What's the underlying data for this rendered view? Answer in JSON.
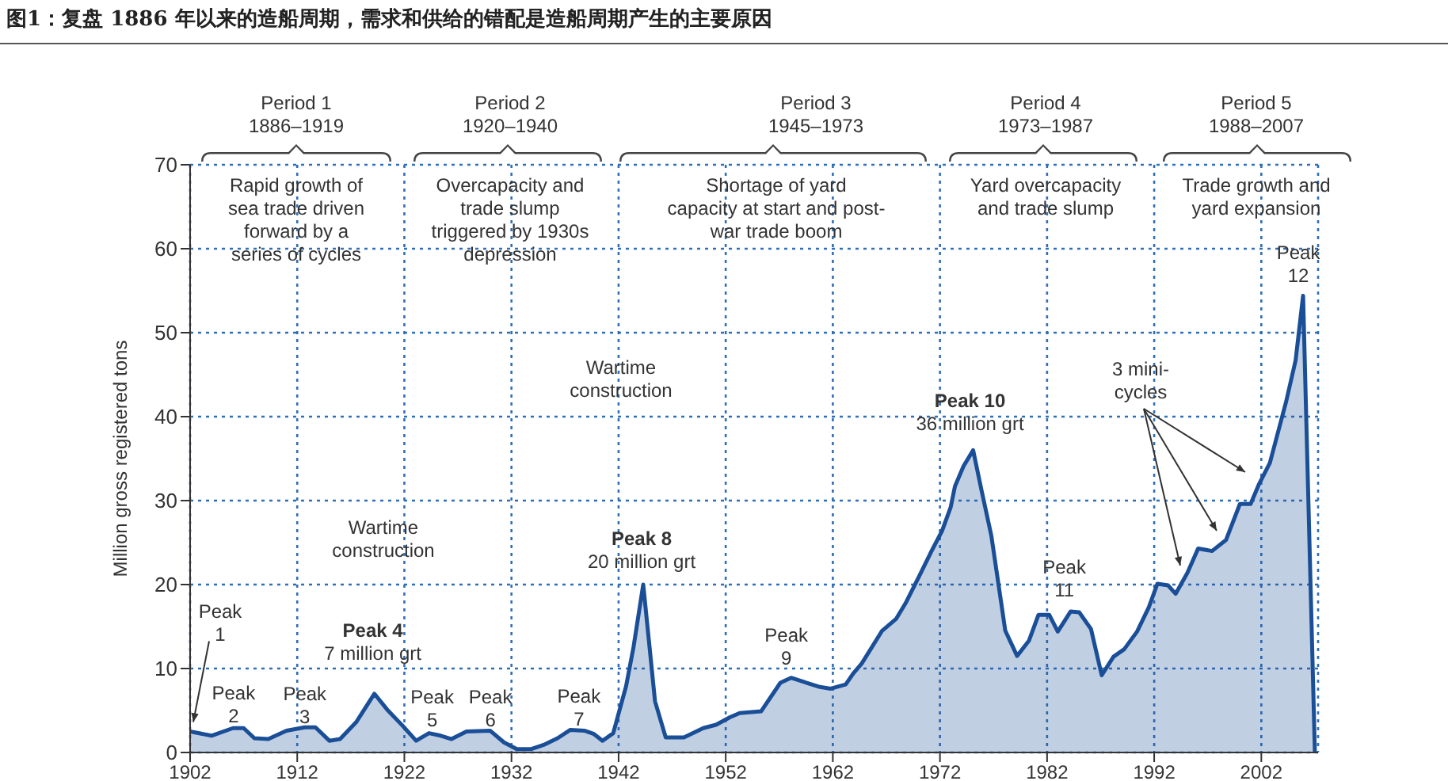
{
  "chart_data": {
    "type": "area",
    "title": "图1：复盘 1886 年以来的造船周期，需求和供给的错配是造船周期产生的主要原因",
    "ylabel": "Million gross registered tons",
    "x": [
      1902,
      1904,
      1906,
      1907,
      1908,
      1909.3,
      1911,
      1912.7,
      1913.7,
      1915,
      1916,
      1917.5,
      1919.2,
      1920.4,
      1921.9,
      1923.1,
      1924.3,
      1925.4,
      1926.4,
      1927.8,
      1930,
      1931.3,
      1932.5,
      1933.8,
      1935,
      1936.3,
      1937.5,
      1938.8,
      1939.7,
      1940.5,
      1941.5,
      1942.7,
      1943.4,
      1944.3,
      1945.4,
      1946.4,
      1948.1,
      1949.9,
      1951.1,
      1952.4,
      1953.3,
      1955.3,
      1957.1,
      1958.1,
      1959.3,
      1960.8,
      1961.8,
      1963.2,
      1963.9,
      1964.7,
      1966.6,
      1967.9,
      1968.8,
      1970.1,
      1971.3,
      1972.2,
      1973,
      1973.4,
      1974.2,
      1975.1,
      1975.9,
      1976.8,
      1978.1,
      1979.2,
      1980.3,
      1981.2,
      1982.2,
      1983,
      1984.2,
      1985,
      1986.1,
      1987.1,
      1988.2,
      1989.2,
      1990.4,
      1991.5,
      1992.3,
      1993.3,
      1994,
      1995.1,
      1996.1,
      1997.4,
      1998.7,
      2000,
      2001,
      2001.8,
      2002.8,
      2004.3,
      2005.2,
      2005.9,
      2007
    ],
    "series": [
      {
        "color": "#1a4f98",
        "values": [
          2.5,
          2.0,
          2.9,
          2.9,
          1.7,
          1.6,
          2.6,
          3.0,
          3.0,
          1.4,
          1.6,
          3.6,
          7.0,
          5.1,
          3.1,
          1.4,
          2.3,
          2.0,
          1.6,
          2.5,
          2.6,
          1.2,
          0.4,
          0.4,
          0.9,
          1.7,
          2.7,
          2.6,
          2.2,
          1.4,
          2.3,
          7.9,
          12.6,
          20,
          6.1,
          1.8,
          1.8,
          2.9,
          3.3,
          4.2,
          4.7,
          4.9,
          8.3,
          8.9,
          8.4,
          7.8,
          7.6,
          8.1,
          9.4,
          10.6,
          14.5,
          15.9,
          17.8,
          21.1,
          24.2,
          26.4,
          29.2,
          31.7,
          34.1,
          36,
          31.1,
          25.8,
          14.5,
          11.5,
          13.3,
          16.4,
          16.4,
          14.4,
          16.8,
          16.7,
          14.7,
          9.2,
          11.4,
          12.3,
          14.4,
          17.3,
          20.1,
          19.9,
          18.9,
          21.4,
          24.3,
          24.0,
          25.3,
          29.6,
          29.6,
          32.0,
          34.5,
          41.7,
          46.7,
          54.4,
          0
        ]
      }
    ],
    "xlim": [
      1902,
      2007.3
    ],
    "xticks": [
      1902,
      1912,
      1922,
      1932,
      1942,
      1952,
      1962,
      1972,
      1982,
      1992,
      2002
    ],
    "ylim": [
      0,
      70
    ],
    "yticks": [
      0,
      10,
      20,
      30,
      40,
      50,
      60,
      70
    ],
    "grid": true,
    "annotations": [
      "Period 1\n1886–1919",
      "Period 2\n1920–1940",
      "Period 3\n1945–1973",
      "Period 4\n1973–1987",
      "Period 5\n1988–2007",
      "Rapid growth of\nsea trade driven\nforward by a\nseries of cycles",
      "Overcapacity and\ntrade slump\ntriggered by 1930s\ndepression",
      "Shortage of yard\ncapacity at start and post-\nwar trade boom",
      "Yard overcapacity\nand trade slump",
      "Trade growth and\nyard expansion",
      "Wartime\nconstruction",
      "Wartime\nconstruction",
      "3 mini-\ncycles",
      {
        "text": "Peak\n1",
        "x": 1902,
        "y": 2.5
      },
      {
        "text": "Peak\n2",
        "x": 1906.5,
        "y": 2.9
      },
      {
        "text": "Peak\n3",
        "x": 1913,
        "y": 3.0
      },
      {
        "text": "Peak 4\n7 million grt",
        "x": 1919.2,
        "y": 7.0
      },
      {
        "text": "Peak\n5",
        "x": 1924.3,
        "y": 2.3
      },
      {
        "text": "Peak\n6",
        "x": 1929,
        "y": 2.6
      },
      {
        "text": "Peak\n7",
        "x": 1938,
        "y": 2.7
      },
      {
        "text": "Peak 8\n20 million grt",
        "x": 1944.3,
        "y": 20
      },
      {
        "text": "Peak\n9",
        "x": 1958.1,
        "y": 8.9
      },
      {
        "text": "Peak 10\n36 million grt",
        "x": 1975.1,
        "y": 36
      },
      {
        "text": "Peak\n11",
        "x": 1984.2,
        "y": 16.8
      },
      {
        "text": "Peak\n12",
        "x": 2005.9,
        "y": 54.4
      }
    ]
  }
}
